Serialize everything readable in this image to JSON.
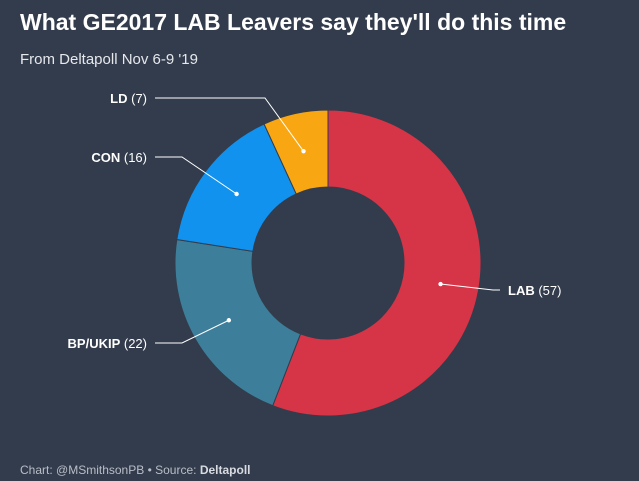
{
  "title": "What GE2017 LAB Leavers say they'll do this time",
  "subtitle": "From Deltapoll Nov 6-9 '19",
  "footer": {
    "chart_label": "Chart: @MSmithsonPB",
    "separator": "•",
    "source_label": "Source:",
    "source_name": "Deltapoll"
  },
  "chart_data": {
    "type": "pie",
    "title": "What GE2017 LAB Leavers say they'll do this time",
    "subtitle": "From Deltapoll Nov 6-9 '19",
    "donut": true,
    "categories": [
      "LAB",
      "BP/UKIP",
      "CON",
      "LD"
    ],
    "values": [
      57,
      22,
      16,
      7
    ],
    "colors": [
      "#d63447",
      "#3d7f9b",
      "#1192ef",
      "#f8a712"
    ],
    "legend": "none"
  }
}
